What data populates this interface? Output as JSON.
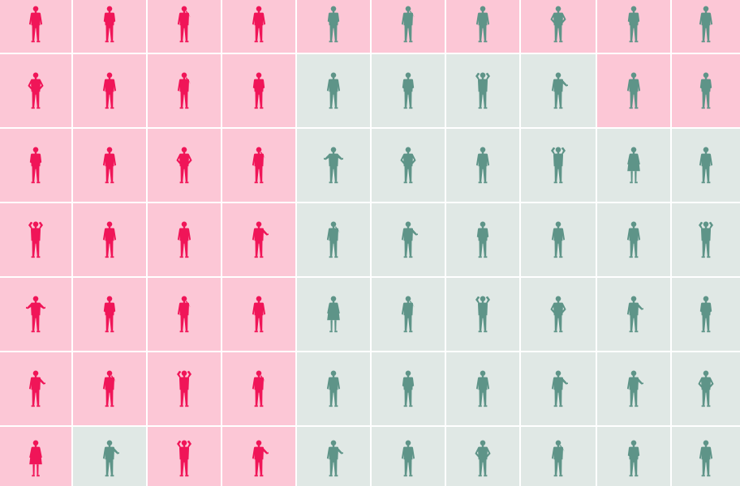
{
  "colors": {
    "pink_bg": "#fcc7d6",
    "pink_figure": "#f01558",
    "teal_bg": "#e0e8e5",
    "teal_figure": "#5e9488",
    "divider": "#ffffff"
  },
  "icon": "person-silhouette-icon",
  "grid": {
    "rows": 7,
    "cols": 10,
    "cells": [
      [
        "pink",
        "pink",
        "pink",
        "pink",
        "pinkteal",
        "pinkteal",
        "pinkteal",
        "pinkteal",
        "pinkteal",
        "pinkteal"
      ],
      [
        "pink",
        "pink",
        "pink",
        "pink",
        "teal",
        "teal",
        "teal",
        "teal",
        "pinkteal",
        "pinkteal"
      ],
      [
        "pink",
        "pink",
        "pink",
        "pink",
        "teal",
        "teal",
        "teal",
        "teal",
        "teal",
        "teal"
      ],
      [
        "pink",
        "pink",
        "pink",
        "pink",
        "teal",
        "teal",
        "teal",
        "teal",
        "teal",
        "teal"
      ],
      [
        "pink",
        "pink",
        "pink",
        "pink",
        "teal",
        "teal",
        "teal",
        "teal",
        "teal",
        "teal"
      ],
      [
        "pink",
        "pink",
        "pink",
        "pink",
        "teal",
        "teal",
        "teal",
        "teal",
        "teal",
        "teal"
      ],
      [
        "pink",
        "teal",
        "pink",
        "pink",
        "teal",
        "teal",
        "teal",
        "teal",
        "teal",
        "teal"
      ]
    ],
    "poses": [
      [
        0,
        1,
        2,
        0,
        1,
        2,
        0,
        3,
        1,
        0
      ],
      [
        3,
        0,
        2,
        1,
        0,
        1,
        4,
        5,
        0,
        1
      ],
      [
        1,
        0,
        3,
        2,
        6,
        3,
        0,
        4,
        7,
        0
      ],
      [
        4,
        0,
        0,
        5,
        2,
        5,
        1,
        0,
        0,
        4
      ],
      [
        6,
        1,
        2,
        0,
        7,
        2,
        4,
        3,
        5,
        1
      ],
      [
        5,
        2,
        4,
        2,
        0,
        1,
        0,
        5,
        5,
        3
      ],
      [
        7,
        5,
        4,
        5,
        5,
        0,
        3,
        2,
        1,
        0
      ]
    ]
  }
}
